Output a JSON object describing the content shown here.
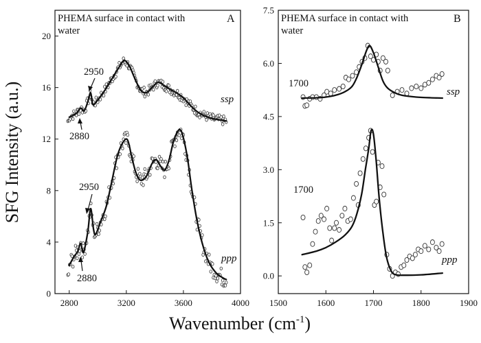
{
  "chart_data": [
    {
      "type": "scatter",
      "panel_letter": "A",
      "title": "PHEMA surface in contact with water",
      "xlabel": "Wavenumber (cm-1)",
      "ylabel": "SFG Intensity (a.u.)",
      "xlim": [
        2700,
        4000
      ],
      "ylim": [
        0,
        22
      ],
      "xticks": [
        "2800",
        "3200",
        "3600",
        "4000"
      ],
      "yticks": [
        "0",
        "4",
        "8",
        "12",
        "16",
        "20"
      ],
      "grid": false,
      "annotations": [
        "2950",
        "2880",
        "2950",
        "2880"
      ],
      "series": [
        {
          "name": "ssp",
          "fit": [
            [
              2800,
              13.7
            ],
            [
              2850,
              14.0
            ],
            [
              2880,
              14.4
            ],
            [
              2905,
              14.2
            ],
            [
              2930,
              14.9
            ],
            [
              2950,
              15.6
            ],
            [
              2965,
              14.7
            ],
            [
              2990,
              14.9
            ],
            [
              3050,
              15.8
            ],
            [
              3100,
              16.7
            ],
            [
              3150,
              17.6
            ],
            [
              3185,
              18.1
            ],
            [
              3220,
              17.7
            ],
            [
              3260,
              16.7
            ],
            [
              3300,
              15.8
            ],
            [
              3340,
              15.6
            ],
            [
              3380,
              16.0
            ],
            [
              3420,
              16.4
            ],
            [
              3460,
              16.2
            ],
            [
              3500,
              15.9
            ],
            [
              3550,
              15.6
            ],
            [
              3600,
              15.2
            ],
            [
              3650,
              14.6
            ],
            [
              3700,
              14.1
            ],
            [
              3750,
              13.8
            ],
            [
              3800,
              13.6
            ],
            [
              3850,
              13.5
            ],
            [
              3900,
              13.4
            ]
          ]
        },
        {
          "name": "ppp",
          "fit": [
            [
              2800,
              2.2
            ],
            [
              2830,
              2.8
            ],
            [
              2860,
              3.3
            ],
            [
              2880,
              3.9
            ],
            [
              2900,
              3.2
            ],
            [
              2930,
              4.8
            ],
            [
              2950,
              6.6
            ],
            [
              2970,
              5.0
            ],
            [
              2985,
              4.6
            ],
            [
              3020,
              5.6
            ],
            [
              3060,
              6.8
            ],
            [
              3100,
              8.8
            ],
            [
              3140,
              10.8
            ],
            [
              3180,
              11.8
            ],
            [
              3210,
              11.9
            ],
            [
              3240,
              10.5
            ],
            [
              3270,
              9.3
            ],
            [
              3300,
              8.8
            ],
            [
              3340,
              9.1
            ],
            [
              3380,
              10.1
            ],
            [
              3410,
              10.4
            ],
            [
              3440,
              9.9
            ],
            [
              3470,
              9.6
            ],
            [
              3500,
              10.4
            ],
            [
              3530,
              11.8
            ],
            [
              3560,
              12.6
            ],
            [
              3580,
              12.7
            ],
            [
              3600,
              12.1
            ],
            [
              3630,
              10.4
            ],
            [
              3660,
              8.0
            ],
            [
              3700,
              5.4
            ],
            [
              3740,
              3.6
            ],
            [
              3780,
              2.4
            ],
            [
              3830,
              1.6
            ],
            [
              3880,
              1.2
            ],
            [
              3900,
              1.1
            ]
          ]
        }
      ]
    },
    {
      "type": "scatter",
      "panel_letter": "B",
      "title": "PHEMA surface in contact with water",
      "xlabel": "Wavenumber (cm-1)",
      "xlim": [
        1500,
        1900
      ],
      "ylim": [
        -0.5,
        7.5
      ],
      "xticks": [
        "1500",
        "1600",
        "1700",
        "1800",
        "1900"
      ],
      "yticks": [
        "0.0",
        "1.5",
        "3.0",
        "4.5",
        "6.0",
        "7.5"
      ],
      "grid": false,
      "annotations": [
        "1700",
        "1700"
      ],
      "series": [
        {
          "name": "ssp",
          "fit": [
            [
              1550,
              5.02
            ],
            [
              1580,
              5.03
            ],
            [
              1600,
              5.05
            ],
            [
              1620,
              5.1
            ],
            [
              1640,
              5.2
            ],
            [
              1655,
              5.35
            ],
            [
              1665,
              5.6
            ],
            [
              1675,
              5.95
            ],
            [
              1685,
              6.35
            ],
            [
              1692,
              6.5
            ],
            [
              1700,
              6.3
            ],
            [
              1710,
              5.9
            ],
            [
              1720,
              5.5
            ],
            [
              1730,
              5.3
            ],
            [
              1745,
              5.17
            ],
            [
              1760,
              5.1
            ],
            [
              1790,
              5.05
            ],
            [
              1820,
              5.03
            ],
            [
              1845,
              5.02
            ]
          ],
          "points": [
            [
              1552,
              5.05
            ],
            [
              1556,
              4.8
            ],
            [
              1560,
              4.82
            ],
            [
              1566,
              5.0
            ],
            [
              1572,
              5.05
            ],
            [
              1580,
              5.05
            ],
            [
              1588,
              5.0
            ],
            [
              1596,
              5.1
            ],
            [
              1602,
              5.2
            ],
            [
              1610,
              5.15
            ],
            [
              1618,
              5.25
            ],
            [
              1628,
              5.28
            ],
            [
              1636,
              5.35
            ],
            [
              1642,
              5.6
            ],
            [
              1648,
              5.55
            ],
            [
              1656,
              5.65
            ],
            [
              1664,
              5.75
            ],
            [
              1670,
              5.9
            ],
            [
              1676,
              6.05
            ],
            [
              1682,
              6.15
            ],
            [
              1688,
              6.5
            ],
            [
              1694,
              6.2
            ],
            [
              1700,
              6.1
            ],
            [
              1706,
              6.25
            ],
            [
              1710,
              6.05
            ],
            [
              1714,
              5.8
            ],
            [
              1720,
              6.15
            ],
            [
              1726,
              6.05
            ],
            [
              1730,
              5.8
            ],
            [
              1740,
              5.1
            ],
            [
              1750,
              5.2
            ],
            [
              1760,
              5.25
            ],
            [
              1770,
              5.15
            ],
            [
              1780,
              5.3
            ],
            [
              1790,
              5.35
            ],
            [
              1800,
              5.3
            ],
            [
              1808,
              5.4
            ],
            [
              1816,
              5.45
            ],
            [
              1824,
              5.55
            ],
            [
              1832,
              5.65
            ],
            [
              1838,
              5.6
            ],
            [
              1844,
              5.7
            ]
          ]
        },
        {
          "name": "ppp",
          "fit": [
            [
              1550,
              0.6
            ],
            [
              1580,
              0.7
            ],
            [
              1600,
              0.8
            ],
            [
              1620,
              0.95
            ],
            [
              1640,
              1.15
            ],
            [
              1655,
              1.4
            ],
            [
              1665,
              1.75
            ],
            [
              1675,
              2.3
            ],
            [
              1683,
              3.0
            ],
            [
              1690,
              3.6
            ],
            [
              1695,
              4.1
            ],
            [
              1700,
              4.0
            ],
            [
              1706,
              3.2
            ],
            [
              1712,
              2.2
            ],
            [
              1720,
              1.2
            ],
            [
              1728,
              0.5
            ],
            [
              1738,
              0.12
            ],
            [
              1748,
              0.03
            ],
            [
              1760,
              0.02
            ],
            [
              1800,
              0.03
            ],
            [
              1845,
              0.08
            ]
          ],
          "points": [
            [
              1552,
              1.65
            ],
            [
              1556,
              0.25
            ],
            [
              1560,
              0.1
            ],
            [
              1566,
              0.3
            ],
            [
              1572,
              0.9
            ],
            [
              1578,
              1.25
            ],
            [
              1584,
              1.55
            ],
            [
              1590,
              1.7
            ],
            [
              1596,
              1.6
            ],
            [
              1602,
              1.9
            ],
            [
              1608,
              1.35
            ],
            [
              1612,
              1.0
            ],
            [
              1618,
              1.35
            ],
            [
              1622,
              1.5
            ],
            [
              1628,
              1.3
            ],
            [
              1634,
              1.7
            ],
            [
              1640,
              1.9
            ],
            [
              1646,
              1.55
            ],
            [
              1652,
              1.6
            ],
            [
              1658,
              2.2
            ],
            [
              1664,
              2.6
            ],
            [
              1668,
              2.0
            ],
            [
              1672,
              2.9
            ],
            [
              1678,
              3.3
            ],
            [
              1684,
              3.6
            ],
            [
              1690,
              3.9
            ],
            [
              1694,
              4.1
            ],
            [
              1698,
              3.5
            ],
            [
              1702,
              2.0
            ],
            [
              1706,
              2.1
            ],
            [
              1710,
              3.2
            ],
            [
              1714,
              2.5
            ],
            [
              1718,
              3.1
            ],
            [
              1722,
              2.3
            ],
            [
              1728,
              0.6
            ],
            [
              1734,
              0.2
            ],
            [
              1740,
              0.0
            ],
            [
              1746,
              0.1
            ],
            [
              1752,
              0.05
            ],
            [
              1758,
              0.25
            ],
            [
              1764,
              0.3
            ],
            [
              1770,
              0.45
            ],
            [
              1776,
              0.55
            ],
            [
              1782,
              0.5
            ],
            [
              1788,
              0.6
            ],
            [
              1794,
              0.75
            ],
            [
              1800,
              0.7
            ],
            [
              1808,
              0.85
            ],
            [
              1816,
              0.75
            ],
            [
              1824,
              0.95
            ],
            [
              1832,
              0.8
            ],
            [
              1838,
              0.7
            ],
            [
              1844,
              0.9
            ]
          ]
        }
      ]
    }
  ],
  "labels": {
    "panelA_title_line1": "PHEMA surface in contact with",
    "panelA_title_line2": "water",
    "panelA_letter": "A",
    "panelB_title_line1": "PHEMA surface in contact with",
    "panelB_title_line2": "water",
    "panelB_letter": "B",
    "ylabel": "SFG Intensity (a.u.)",
    "xlabel_main": "Wavenumber (cm",
    "xlabel_sup": "-1",
    "xlabel_close": ")",
    "a_2950_top": "2950",
    "a_2880_top": "2880",
    "a_2950_bot": "2950",
    "a_2880_bot": "2880",
    "a_ssp": "ssp",
    "a_ppp": "ppp",
    "b_1700_top": "1700",
    "b_1700_bot": "1700",
    "b_ssp": "ssp",
    "b_ppp": "ppp",
    "xticksA": [
      "2800",
      "3200",
      "3600",
      "4000"
    ],
    "yticksA": [
      "0",
      "4",
      "8",
      "12",
      "16",
      "20"
    ],
    "xticksB": [
      "1500",
      "1600",
      "1700",
      "1800",
      "1900"
    ],
    "yticksB": [
      "0.0",
      "1.5",
      "3.0",
      "4.5",
      "6.0",
      "7.5"
    ]
  }
}
